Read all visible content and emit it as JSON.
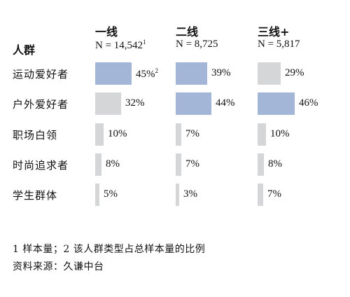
{
  "chart_data": {
    "type": "bar",
    "row_header": "人群",
    "tiers": [
      {
        "name": "一线",
        "n_label": "N = 14,542",
        "n_note": "1"
      },
      {
        "name": "二线",
        "n_label": "N = 8,725",
        "n_note": ""
      },
      {
        "name": "三线+",
        "n_label": "N = 5,817",
        "n_note": ""
      }
    ],
    "categories": [
      "运动爱好者",
      "户外爱好者",
      "职场白领",
      "时尚追求者",
      "学生群体"
    ],
    "series": [
      {
        "name": "一线",
        "values": [
          45,
          32,
          10,
          8,
          5
        ],
        "highlight": [
          true,
          false,
          false,
          false,
          false
        ]
      },
      {
        "name": "二线",
        "values": [
          39,
          44,
          7,
          7,
          3
        ],
        "highlight": [
          true,
          true,
          false,
          false,
          false
        ]
      },
      {
        "name": "三线+",
        "values": [
          29,
          46,
          10,
          8,
          7
        ],
        "highlight": [
          false,
          true,
          false,
          false,
          false
        ]
      }
    ],
    "value_suffix": "%",
    "value_notes": [
      [
        "2",
        "",
        "",
        "",
        ""
      ],
      [
        "",
        "",
        "",
        "",
        ""
      ],
      [
        "",
        "",
        "",
        "",
        ""
      ]
    ],
    "colors": {
      "highlight": "#a3b6d7",
      "normal": "#d5d6d8"
    }
  },
  "footnotes": [
    "1 样本量；2 该人群类型占总样本量的比例",
    "资料来源：久谦中台"
  ]
}
